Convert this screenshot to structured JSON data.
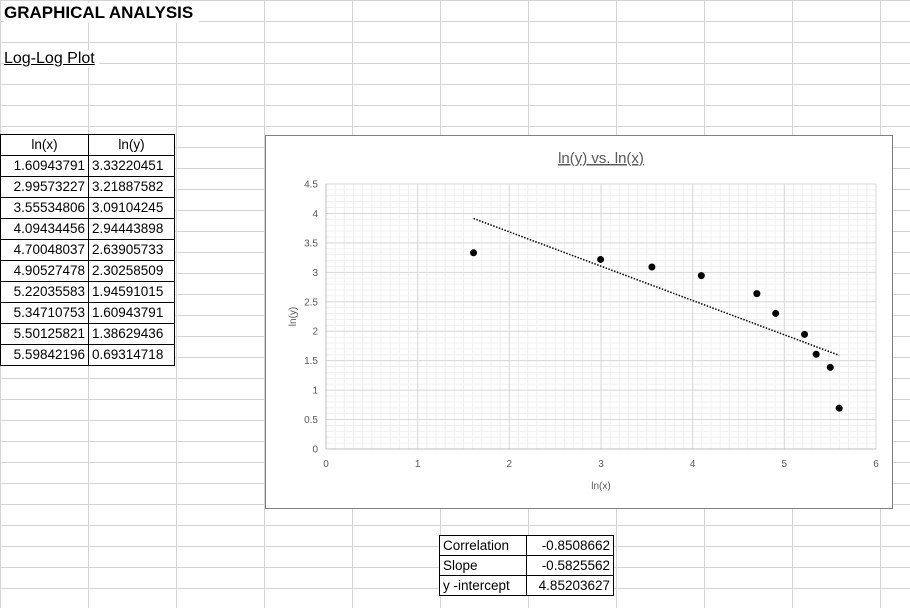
{
  "sheet": {
    "title": "GRAPHICAL ANALYSIS",
    "subtitle": "Log-Log Plot"
  },
  "table": {
    "headers": [
      "ln(x)",
      "ln(y)"
    ],
    "rows": [
      [
        "1.60943791",
        "3.33220451"
      ],
      [
        "2.99573227",
        "3.21887582"
      ],
      [
        "3.55534806",
        "3.09104245"
      ],
      [
        "4.09434456",
        "2.94443898"
      ],
      [
        "4.70048037",
        "2.63905733"
      ],
      [
        "4.90527478",
        "2.30258509"
      ],
      [
        "5.22035583",
        "1.94591015"
      ],
      [
        "5.34710753",
        "1.60943791"
      ],
      [
        "5.50125821",
        "1.38629436"
      ],
      [
        "5.59842196",
        "0.69314718"
      ]
    ]
  },
  "stats": {
    "rows": [
      {
        "label": "Correlation",
        "value": "-0.8508662"
      },
      {
        "label": "Slope",
        "value": "-0.5825562"
      },
      {
        "label": "y -intercept",
        "value": "4.85203627"
      }
    ]
  },
  "chart_data": {
    "type": "scatter",
    "title": "ln(y) vs. ln(x)",
    "xlabel": "ln(x)",
    "ylabel": "ln(y)",
    "xlim": [
      0,
      6
    ],
    "ylim": [
      0,
      4.5
    ],
    "xticks": [
      0,
      1,
      2,
      3,
      4,
      5,
      6
    ],
    "yticks": [
      0,
      0.5,
      1,
      1.5,
      2,
      2.5,
      3,
      3.5,
      4,
      4.5
    ],
    "grid": true,
    "series": [
      {
        "x": [
          1.60943791,
          2.99573227,
          3.55534806,
          4.09434456,
          4.70048037,
          4.90527478,
          5.22035583,
          5.34710753,
          5.50125821,
          5.59842196
        ],
        "y": [
          3.33220451,
          3.21887582,
          3.09104245,
          2.94443898,
          2.63905733,
          2.30258509,
          1.94591015,
          1.60943791,
          1.38629436,
          0.69314718
        ],
        "color": "#000000"
      }
    ],
    "trendline": {
      "type": "linear",
      "slope": -0.5825562,
      "intercept": 4.85203627,
      "x_range": [
        1.60943791,
        5.59842196
      ],
      "style": "dotted"
    }
  }
}
